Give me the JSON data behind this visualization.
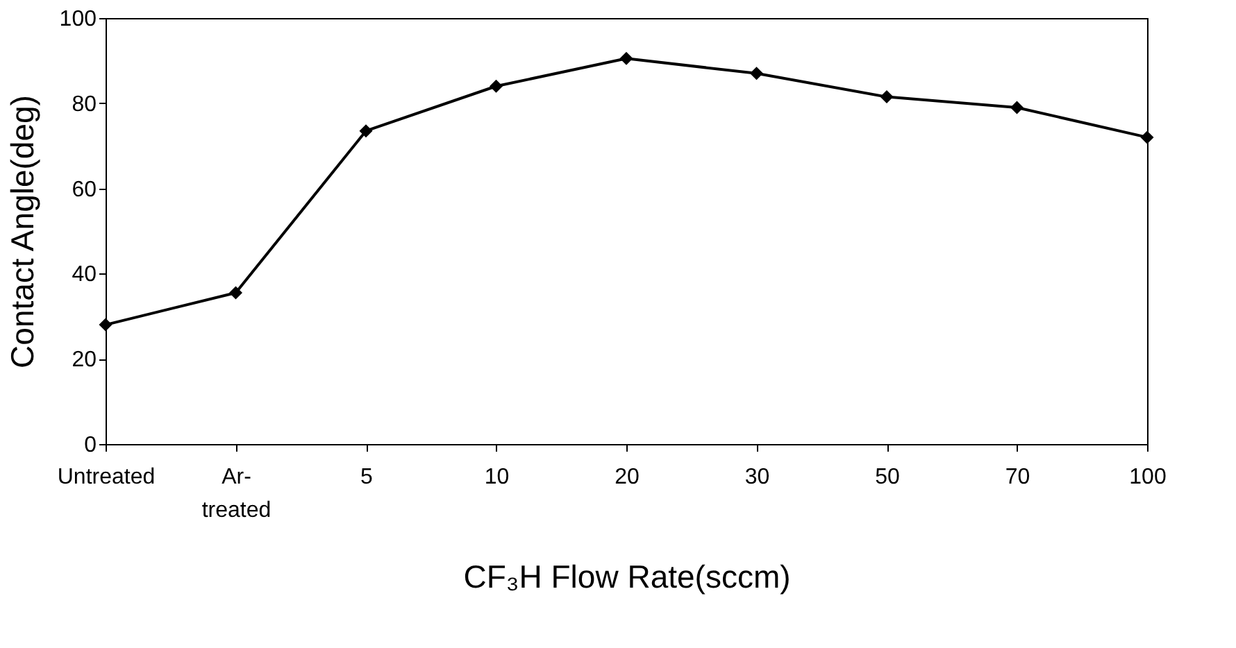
{
  "chart_data": {
    "type": "line",
    "xlabel": "CF₃H Flow Rate(sccm)",
    "ylabel": "Contact Angle(deg)",
    "categories": [
      "Untreated",
      "Ar-\ntreated",
      "5",
      "10",
      "20",
      "30",
      "50",
      "70",
      "100"
    ],
    "series": [
      {
        "color": "#000000",
        "values": [
          28,
          35.5,
          73.5,
          84,
          90.5,
          87,
          81.5,
          79,
          72
        ]
      }
    ],
    "ylim": [
      0,
      100
    ],
    "yticks": [
      0,
      20,
      40,
      60,
      80,
      100
    ],
    "marker": "diamond",
    "line_style": "solid",
    "grid": false,
    "legend": false
  }
}
